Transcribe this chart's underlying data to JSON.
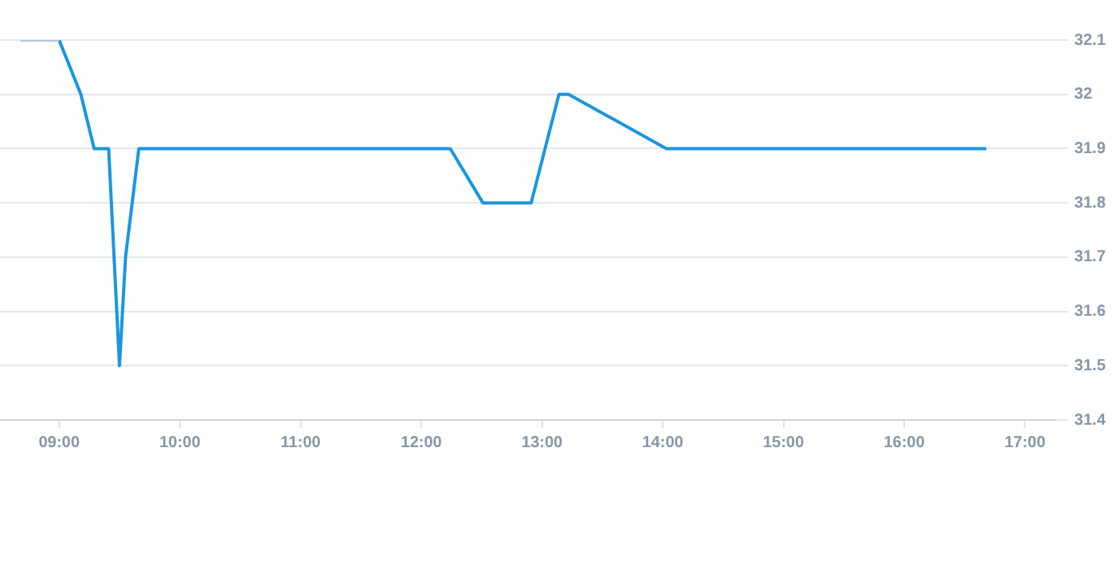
{
  "chart_data": {
    "type": "line",
    "series": [
      {
        "color": "#b0c4de",
        "x": [
          8.68,
          9.0
        ],
        "values": [
          32.1,
          32.1
        ]
      },
      {
        "color": "#1a96e0",
        "x": [
          9.0,
          9.18,
          9.29,
          9.41,
          9.5,
          9.55,
          9.66,
          12.24,
          12.51,
          12.91,
          13.14,
          13.22,
          14.03,
          16.68
        ],
        "values": [
          32.1,
          32.0,
          31.9,
          31.9,
          31.5,
          31.7,
          31.9,
          31.9,
          31.8,
          31.8,
          32.0,
          32.0,
          31.9,
          31.9
        ]
      }
    ],
    "xlim": [
      8.51,
      17.25
    ],
    "xticks": [
      {
        "value": 9,
        "label": "09:00"
      },
      {
        "value": 10,
        "label": "10:00"
      },
      {
        "value": 11,
        "label": "11:00"
      },
      {
        "value": 12,
        "label": "12:00"
      },
      {
        "value": 13,
        "label": "13:00"
      },
      {
        "value": 14,
        "label": "14:00"
      },
      {
        "value": 15,
        "label": "15:00"
      },
      {
        "value": 16,
        "label": "16:00"
      },
      {
        "value": 17,
        "label": "17:00"
      }
    ],
    "ylim": [
      31.4,
      32.1
    ],
    "yticks": [
      31.4,
      31.5,
      31.6,
      31.7,
      31.8,
      31.9,
      32,
      32.1
    ],
    "grid": "y",
    "legend": false,
    "marker": "none",
    "line_style": "solid"
  }
}
